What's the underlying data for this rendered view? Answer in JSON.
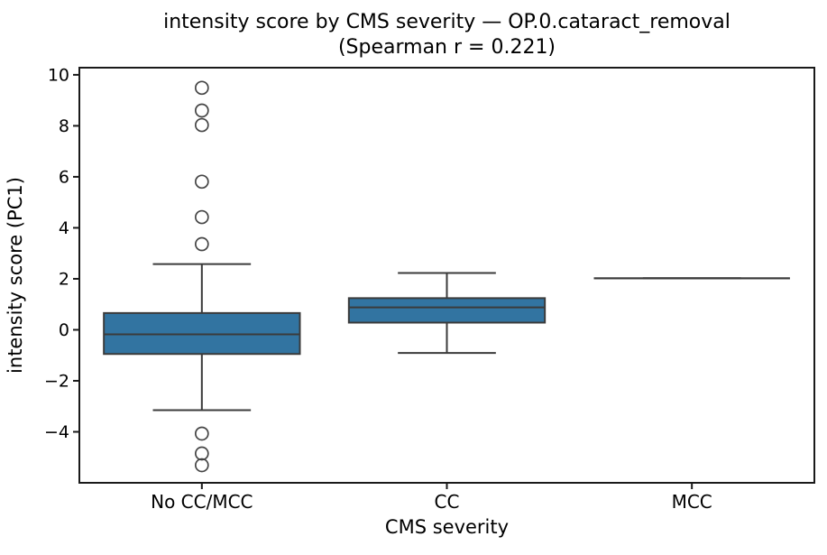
{
  "chart_data": {
    "type": "box",
    "title_line1": "intensity score by CMS severity — OP.0.cataract_removal",
    "title_line2": "(Spearman r = 0.221)",
    "xlabel": "CMS severity",
    "ylabel": "intensity score (PC1)",
    "categories": [
      "No CC/MCC",
      "CC",
      "MCC"
    ],
    "ylim": [
      -6.0,
      10.28
    ],
    "yticks": [
      {
        "value": 10,
        "label": "10"
      },
      {
        "value": 8,
        "label": "8"
      },
      {
        "value": 6,
        "label": "6"
      },
      {
        "value": 4,
        "label": "4"
      },
      {
        "value": 2,
        "label": "2"
      },
      {
        "value": 0,
        "label": "0"
      },
      {
        "value": -2,
        "label": "−2"
      },
      {
        "value": -4,
        "label": "−4"
      }
    ],
    "groups": [
      {
        "category": "No CC/MCC",
        "whisker_high": 2.58,
        "q3": 0.66,
        "median": -0.18,
        "q1": -0.95,
        "whisker_low": -3.15,
        "outliers": [
          9.49,
          8.6,
          8.03,
          5.81,
          4.42,
          3.36,
          -4.07,
          -4.85,
          -5.31
        ]
      },
      {
        "category": "CC",
        "whisker_high": 2.23,
        "q3": 1.24,
        "median": 0.88,
        "q1": 0.28,
        "whisker_low": -0.91,
        "outliers": []
      },
      {
        "category": "MCC",
        "whisker_high": 2.02,
        "q3": 2.02,
        "median": 2.02,
        "q1": 2.02,
        "whisker_low": 2.02,
        "outliers": []
      }
    ],
    "colors": {
      "box_fill": "#3274A1",
      "box_line": "#3B3B3B",
      "flier": "#454545",
      "spine": "#1A1A1A",
      "text": "#000000"
    },
    "legend": "none",
    "grid": "off"
  }
}
